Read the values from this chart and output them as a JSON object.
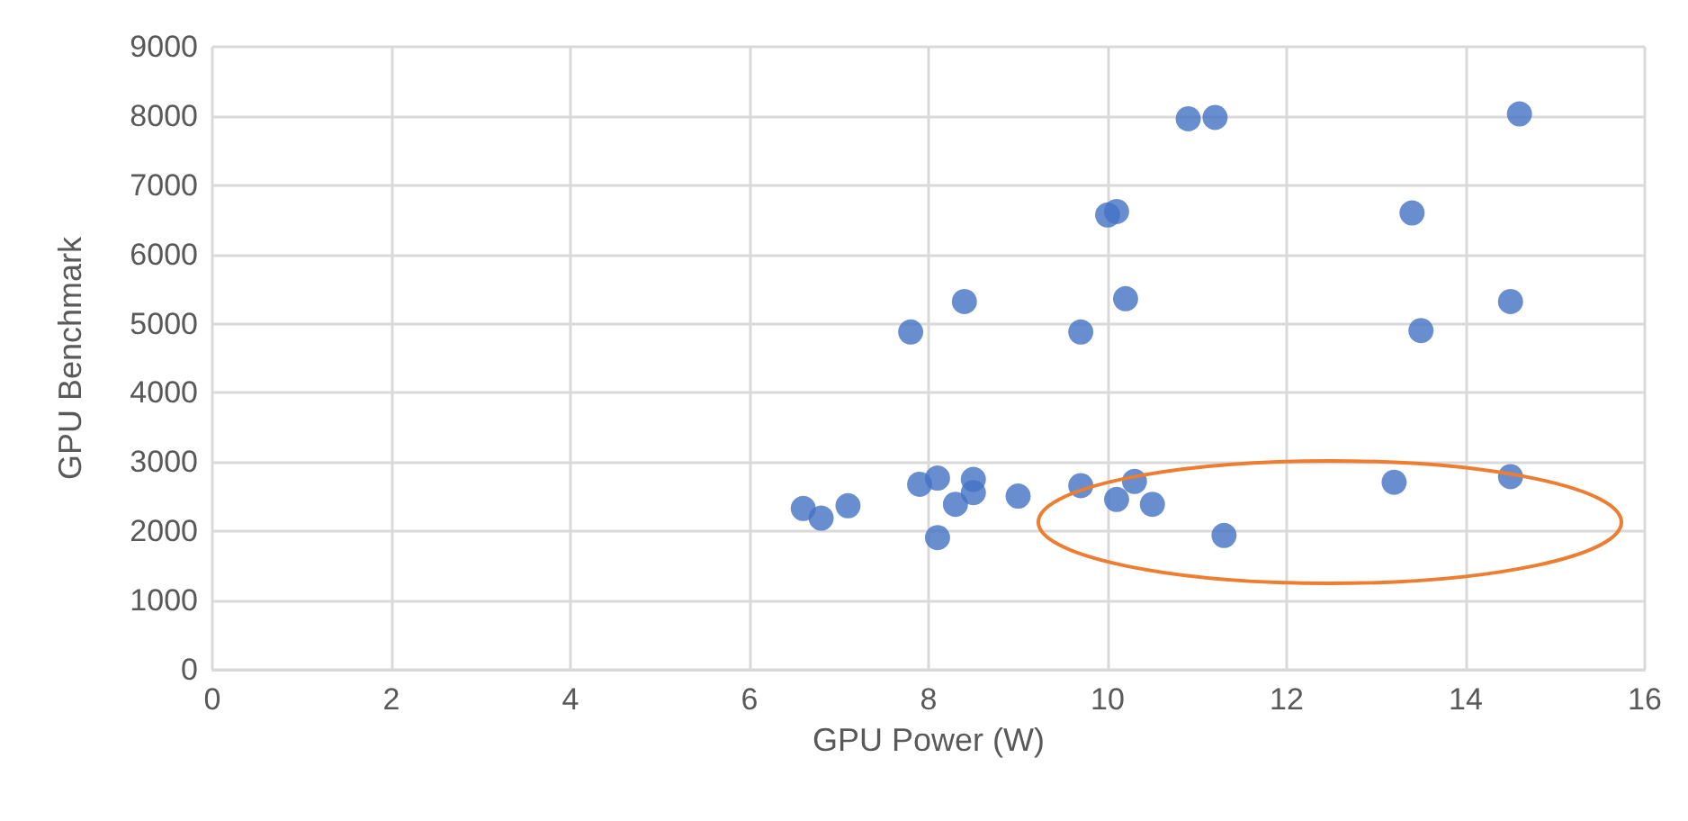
{
  "chart_data": {
    "type": "scatter",
    "xlabel": "GPU Power (W)",
    "ylabel": "GPU Benchmark",
    "x": [
      6.6,
      6.8,
      7.1,
      7.8,
      7.9,
      8.1,
      8.1,
      8.3,
      8.4,
      8.5,
      8.5,
      9.0,
      9.7,
      9.7,
      10.0,
      10.1,
      10.1,
      10.2,
      10.3,
      10.5,
      10.9,
      11.2,
      11.3,
      13.2,
      13.4,
      13.5,
      14.5,
      14.5,
      14.6
    ],
    "series": [
      {
        "color": "#4472c4",
        "values": [
          2330,
          2190,
          2370,
          4880,
          2680,
          2770,
          1910,
          2390,
          5320,
          2750,
          2560,
          2510,
          4880,
          2660,
          6570,
          6620,
          2460,
          5360,
          2720,
          2390,
          7960,
          7980,
          1940,
          2710,
          6600,
          4900,
          2790,
          5320,
          8030
        ]
      }
    ],
    "xlim": [
      0,
      16
    ],
    "xticks": [
      0,
      2,
      4,
      6,
      8,
      10,
      12,
      14,
      16
    ],
    "ylim": [
      0,
      9000
    ],
    "yticks": [
      0,
      1000,
      2000,
      3000,
      4000,
      5000,
      6000,
      7000,
      8000,
      9000
    ],
    "grid": true,
    "marker": "circle"
  }
}
